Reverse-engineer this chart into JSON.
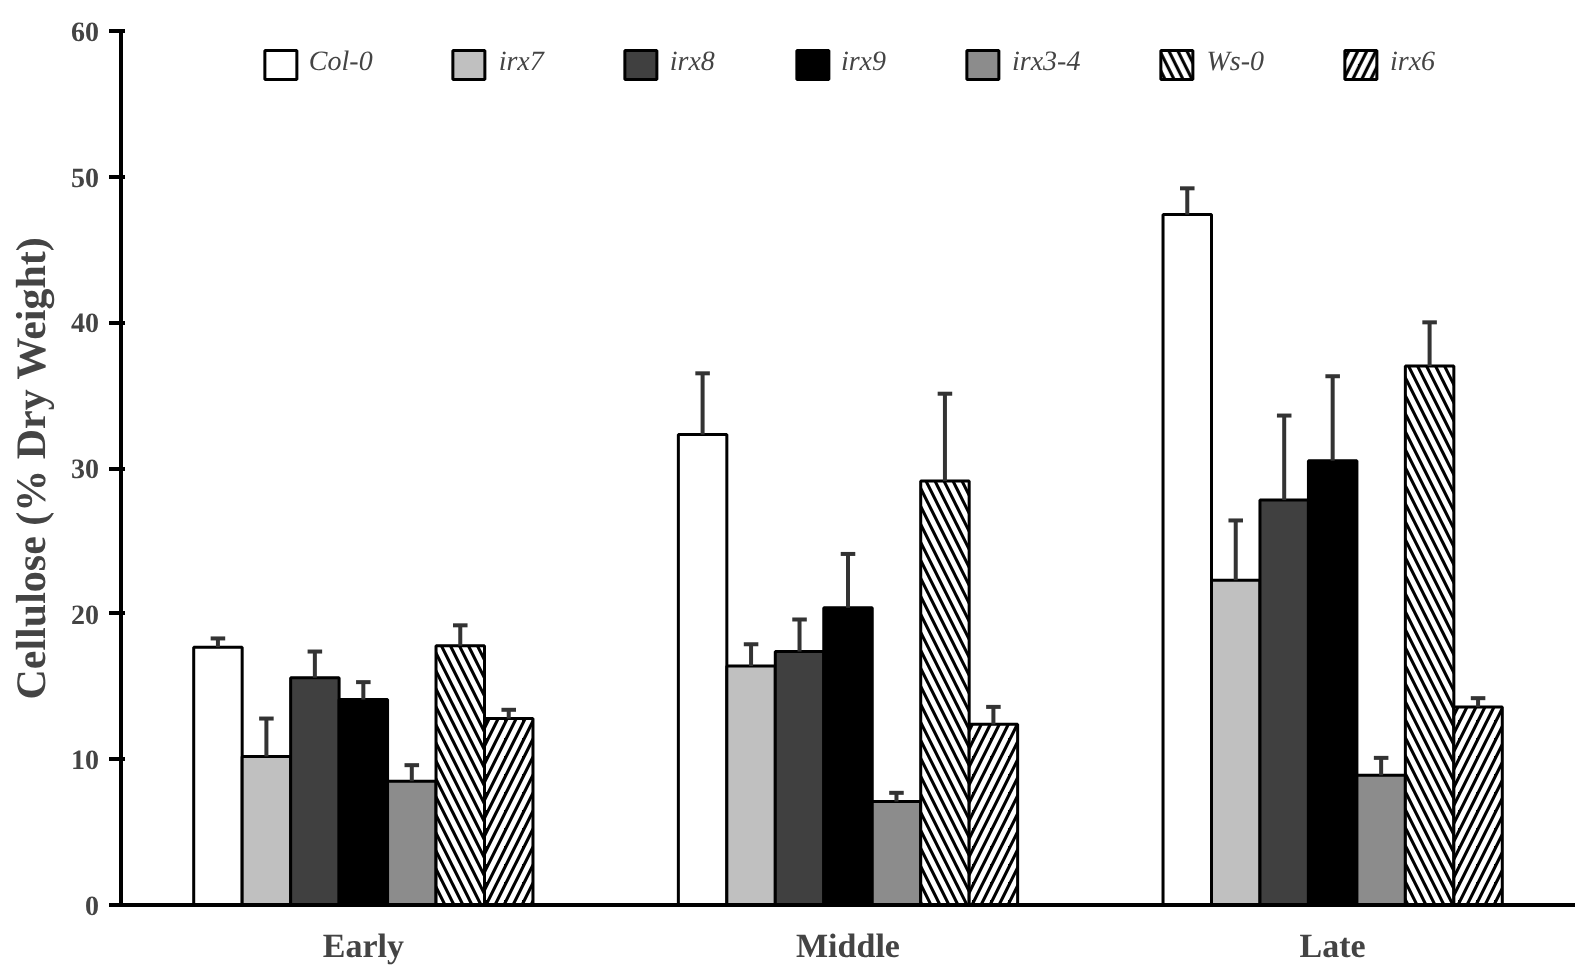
{
  "chart_data": {
    "type": "bar",
    "ylabel": "Cellulose (% Dry Weight)",
    "categories": [
      "Early",
      "Middle",
      "Late"
    ],
    "series": [
      {
        "name": "Col-0",
        "color": "#ffffff",
        "values": [
          17.7,
          32.3,
          47.4
        ],
        "errors": [
          [
            17.7,
            18.3
          ],
          [
            32.3,
            36.5
          ],
          [
            47.4,
            49.2
          ]
        ]
      },
      {
        "name": "irx7",
        "color": "#c0c0c0",
        "values": [
          10.2,
          16.4,
          22.3
        ],
        "errors": [
          [
            10.2,
            12.8
          ],
          [
            16.4,
            17.9
          ],
          [
            22.3,
            26.4
          ]
        ]
      },
      {
        "name": "irx8",
        "color": "#404040",
        "values": [
          15.6,
          17.4,
          27.8
        ],
        "errors": [
          [
            15.6,
            17.4
          ],
          [
            17.4,
            19.6
          ],
          [
            27.8,
            33.6
          ]
        ]
      },
      {
        "name": "irx9",
        "color": "#000000",
        "values": [
          14.1,
          20.4,
          30.5
        ],
        "errors": [
          [
            14.1,
            15.3
          ],
          [
            20.4,
            24.1
          ],
          [
            30.5,
            36.3
          ]
        ]
      },
      {
        "name": "irx3-4",
        "color": "#8c8c8c",
        "values": [
          8.5,
          7.1,
          8.9
        ],
        "errors": [
          [
            8.5,
            9.6
          ],
          [
            7.1,
            7.7
          ],
          [
            8.9,
            10.1
          ]
        ]
      },
      {
        "name": "Ws-0",
        "color": "#000000",
        "values": [
          17.8,
          29.1,
          37.0
        ],
        "errors": [
          [
            17.8,
            19.2
          ],
          [
            29.1,
            35.1
          ],
          [
            37.0,
            40.0
          ]
        ]
      },
      {
        "name": "irx6",
        "color": "#000000",
        "values": [
          12.8,
          12.4,
          13.6
        ],
        "errors": [
          [
            12.8,
            13.4
          ],
          [
            12.4,
            13.6
          ],
          [
            13.6,
            14.2
          ]
        ]
      }
    ],
    "ylim": [
      0,
      60
    ],
    "yticks": [
      0,
      10,
      20,
      30,
      40,
      50,
      60
    ],
    "grid": false,
    "legend": "top"
  }
}
